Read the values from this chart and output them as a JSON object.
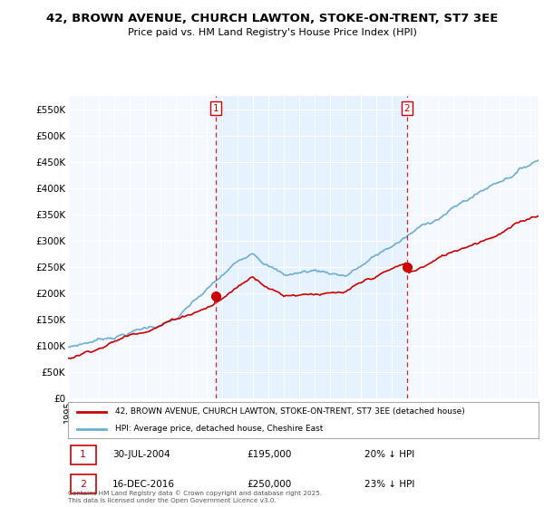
{
  "title": "42, BROWN AVENUE, CHURCH LAWTON, STOKE-ON-TRENT, ST7 3EE",
  "subtitle": "Price paid vs. HM Land Registry's House Price Index (HPI)",
  "ylabel_ticks": [
    "£0",
    "£50K",
    "£100K",
    "£150K",
    "£200K",
    "£250K",
    "£300K",
    "£350K",
    "£400K",
    "£450K",
    "£500K",
    "£550K"
  ],
  "ytick_values": [
    0,
    50000,
    100000,
    150000,
    200000,
    250000,
    300000,
    350000,
    400000,
    450000,
    500000,
    550000
  ],
  "ylim": [
    0,
    575000
  ],
  "xlim_start": 1995.0,
  "xlim_end": 2025.5,
  "hpi_color": "#6baed6",
  "price_color": "#cc0000",
  "vline1_x": 2004.58,
  "vline2_x": 2016.96,
  "marker1_x": 2004.58,
  "marker1_y": 195000,
  "marker2_x": 2016.96,
  "marker2_y": 250000,
  "legend_label_price": "42, BROWN AVENUE, CHURCH LAWTON, STOKE-ON-TRENT, ST7 3EE (detached house)",
  "legend_label_hpi": "HPI: Average price, detached house, Cheshire East",
  "annotation1_num": "1",
  "annotation1_date": "30-JUL-2004",
  "annotation1_price": "£195,000",
  "annotation1_hpi": "20% ↓ HPI",
  "annotation2_num": "2",
  "annotation2_date": "16-DEC-2016",
  "annotation2_price": "£250,000",
  "annotation2_hpi": "23% ↓ HPI",
  "footnote": "Contains HM Land Registry data © Crown copyright and database right 2025.\nThis data is licensed under the Open Government Licence v3.0.",
  "bg_color": "#ffffff",
  "plot_bg_color": "#f5f8ff",
  "grid_color": "#ffffff",
  "shade_color": "#ddeeff"
}
